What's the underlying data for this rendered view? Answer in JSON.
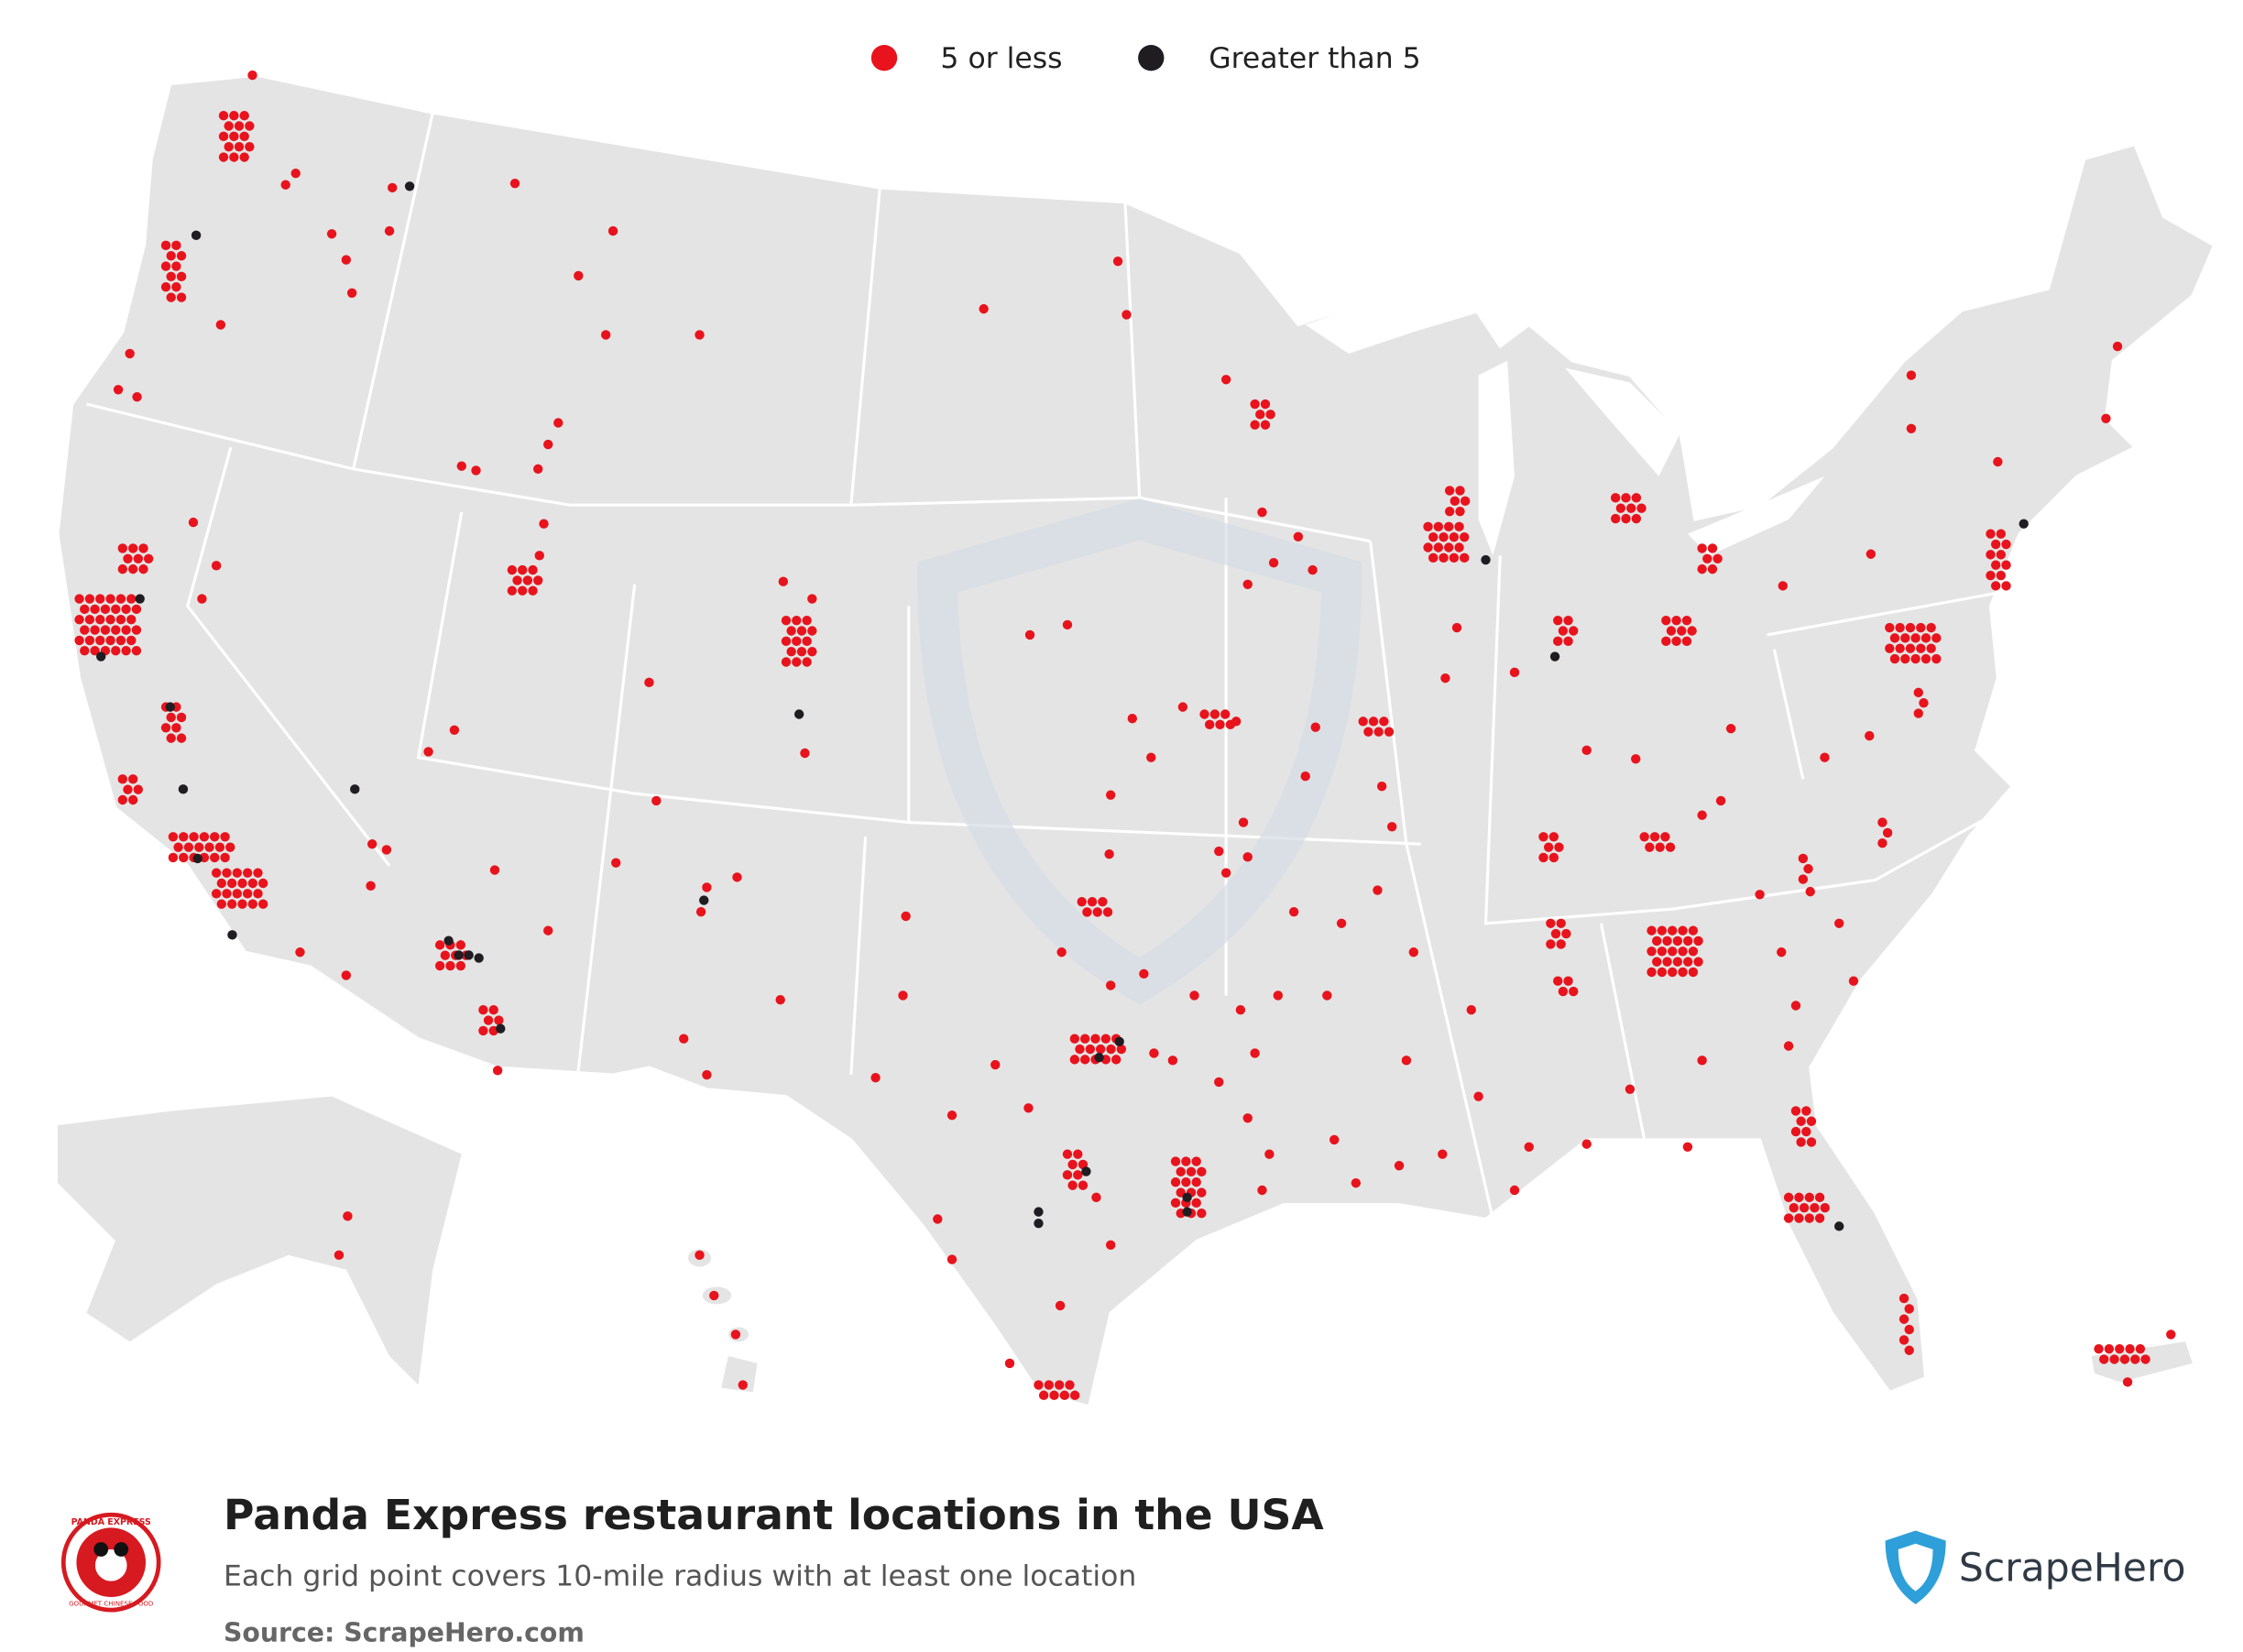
{
  "legend": {
    "items": [
      {
        "label": "5 or less",
        "color": "#e8131c"
      },
      {
        "label": "Greater than 5",
        "color": "#1f1d22"
      }
    ]
  },
  "footer": {
    "title": "Panda Express restaurant locations in the USA",
    "subtitle": "Each grid point covers 10-mile radius with at least one location",
    "source": "Source: ScrapeHero.com",
    "logo_text": "PANDA EXPRESS",
    "logo_tagline": "GOURMET CHINESE FOOD",
    "brand": "ScrapeHero"
  }
}
